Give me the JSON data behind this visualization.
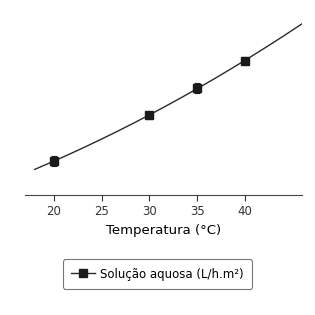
{
  "x": [
    20,
    30,
    35,
    40
  ],
  "y": [
    30,
    50,
    62,
    74
  ],
  "yerr": [
    2.0,
    1.5,
    2.0,
    1.5
  ],
  "xlabel": "Temperatura (°C)",
  "legend_label": "Solução aquosa (L/h.m²)",
  "line_color": "#2a2a2a",
  "marker": "s",
  "marker_color": "#1a1a1a",
  "marker_size": 6,
  "xlim": [
    17,
    46
  ],
  "ylim": [
    15,
    95
  ],
  "xticks": [
    20,
    25,
    30,
    35,
    40
  ],
  "background_color": "#ffffff",
  "legend_box_color": "#ffffff",
  "legend_edge_color": "#777777"
}
